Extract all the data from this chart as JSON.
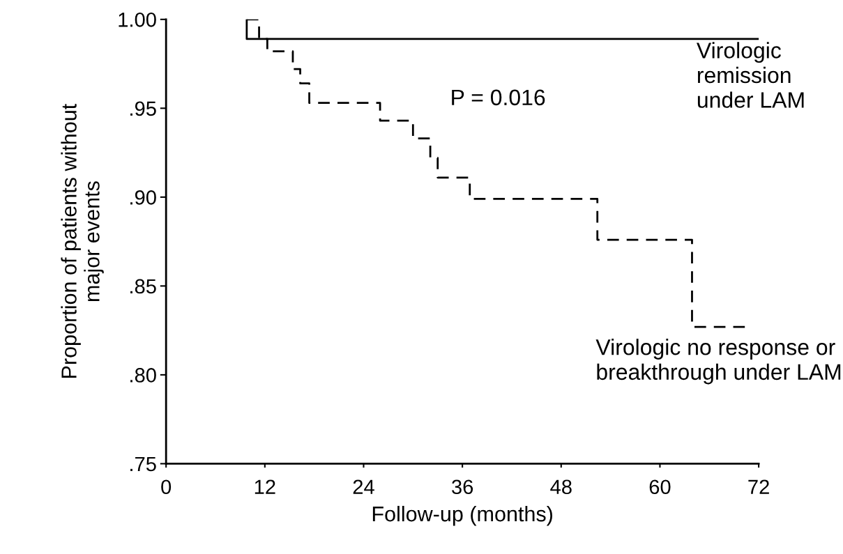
{
  "chart_data": {
    "type": "step",
    "xlabel": "Follow-up (months)",
    "ylabel": "Proportion of patients without\nmajor events",
    "xlim": [
      0,
      72
    ],
    "xticks": [
      0,
      12,
      24,
      36,
      48,
      60,
      72
    ],
    "ylim": [
      0.75,
      1.0
    ],
    "yticks": [
      {
        "value": 0.75,
        "label": ".75"
      },
      {
        "value": 0.8,
        "label": ".80"
      },
      {
        "value": 0.85,
        "label": ".85"
      },
      {
        "value": 0.9,
        "label": ".90"
      },
      {
        "value": 0.95,
        "label": ".95"
      },
      {
        "value": 1.0,
        "label": "1.00"
      }
    ],
    "grid": false,
    "legend": false,
    "marker": "none",
    "annotations": [
      "P = 0.016"
    ],
    "series": [
      {
        "name": "Virologic\nremission\nunder LAM",
        "color": "#000000",
        "line_style": "solid",
        "x": [
          9.8,
          9.8,
          72
        ],
        "values": [
          1.0,
          0.989,
          0.989
        ]
      },
      {
        "name": "Virologic no response or\nbreakthrough under LAM",
        "color": "#000000",
        "line_style": "dashed",
        "x": [
          9.8,
          11.3,
          12.3,
          15.4,
          16.3,
          17.4,
          26.0,
          30.0,
          32.1,
          33.0,
          36.9,
          52.4,
          63.9,
          70.6
        ],
        "values": [
          1.0,
          0.989,
          0.982,
          0.972,
          0.964,
          0.953,
          0.943,
          0.933,
          0.922,
          0.911,
          0.899,
          0.876,
          0.827,
          0.827
        ]
      }
    ]
  }
}
